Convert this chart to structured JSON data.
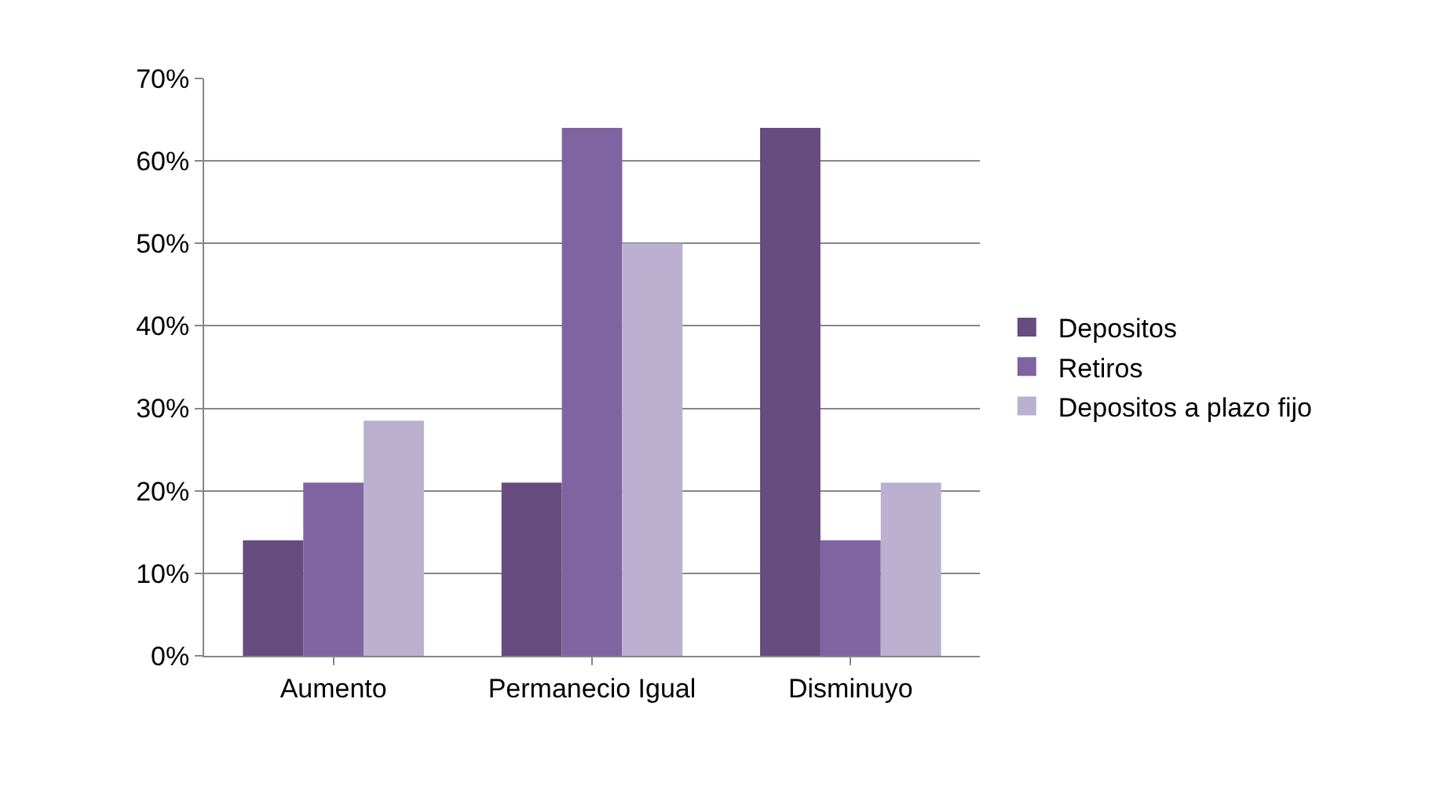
{
  "chart_data": {
    "type": "bar",
    "categories": [
      "Aumento",
      "Permanecio Igual",
      "Disminuyo"
    ],
    "series": [
      {
        "name": "Depositos",
        "color": "#664c7f",
        "values": [
          14,
          21,
          64
        ]
      },
      {
        "name": "Retiros",
        "color": "#8064a2",
        "values": [
          21,
          64,
          14
        ]
      },
      {
        "name": "Depositos a plazo fijo",
        "color": "#bbb0cf",
        "values": [
          28.5,
          50,
          21
        ]
      }
    ],
    "ylim": [
      0,
      70
    ],
    "yticks": [
      {
        "value": 0,
        "label": "0%"
      },
      {
        "value": 10,
        "label": "10%"
      },
      {
        "value": 20,
        "label": "20%"
      },
      {
        "value": 30,
        "label": "30%"
      },
      {
        "value": 40,
        "label": "40%"
      },
      {
        "value": 50,
        "label": "50%"
      },
      {
        "value": 60,
        "label": "60%"
      },
      {
        "value": 70,
        "label": "70%"
      }
    ],
    "grid": "y",
    "legend": "right"
  }
}
